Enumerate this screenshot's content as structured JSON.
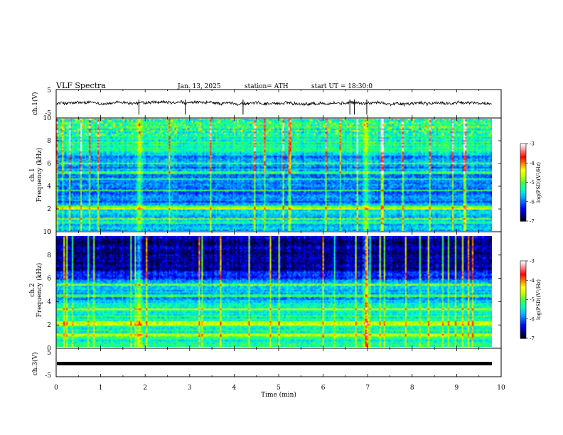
{
  "header": {
    "title": "VLF Spectra",
    "date": "Jan. 13, 2025",
    "station": "station= ATH",
    "start": "start UT =  18:30:0"
  },
  "chart_data": {
    "type": "heatmap",
    "x_axis": {
      "label": "Time (min)",
      "range": [
        0,
        10
      ],
      "ticks": [
        "0",
        "1",
        "2",
        "3",
        "4",
        "5",
        "6",
        "7",
        "8",
        "9",
        "10"
      ],
      "data_end_min": 9.8
    },
    "panels": [
      {
        "id": "ch1-waveform",
        "type": "line",
        "ylabel": "ch.1(V)",
        "ylim": [
          -5,
          5
        ],
        "yticks": [
          "5",
          "-5"
        ],
        "baseline_v": 0.2,
        "noise_amplitude_v": 0.9,
        "spike_times_min": [
          1.86,
          2.9,
          4.2,
          6.6,
          6.7,
          6.98
        ]
      },
      {
        "id": "ch1-spectrogram",
        "type": "heatmap",
        "ylabel": "ch.1\nFrequency (kHz)",
        "ylim": [
          0,
          10
        ],
        "yticks": [
          "0",
          "2",
          "4",
          "6",
          "8",
          "10"
        ],
        "colorbar": {
          "label": "log(PSD)(V²/Hz)",
          "range": [
            -7,
            -3
          ],
          "ticks": [
            "-3",
            "-4",
            "-5",
            "-6",
            "-7"
          ]
        },
        "bright_lines_khz": [
          0.7,
          1.0,
          1.9,
          2.1,
          3.6,
          4.6,
          5.2,
          6.0
        ],
        "sferic_times_min": [
          1.86,
          6.98
        ]
      },
      {
        "id": "ch2-spectrogram",
        "type": "heatmap",
        "ylabel": "ch.2\nFrequency (kHz)",
        "ylim": [
          0,
          10
        ],
        "yticks": [
          "0",
          "2",
          "4",
          "6",
          "8",
          "10"
        ],
        "colorbar": {
          "label": "log(PSD)(V²/Hz)",
          "range": [
            -7,
            -3
          ],
          "ticks": [
            "-3",
            "-4",
            "-5",
            "-6",
            "-7"
          ]
        },
        "bright_lines_khz": [
          1.0,
          2.0,
          2.15,
          3.4,
          4.6,
          5.6
        ],
        "sferic_times_min": [
          1.86,
          6.98
        ]
      },
      {
        "id": "ch3-waveform",
        "type": "line",
        "ylabel": "ch.3(V)",
        "ylim": [
          -5,
          5
        ],
        "yticks": [
          "5",
          "-5"
        ],
        "baseline_v": 0.0
      }
    ],
    "colormap": [
      "#000000",
      "#000080",
      "#0000ff",
      "#0060ff",
      "#00c0ff",
      "#00ffc0",
      "#40ff40",
      "#c0ff00",
      "#ffff00",
      "#ff8000",
      "#ff0000",
      "#ff8080",
      "#ffffff"
    ]
  }
}
